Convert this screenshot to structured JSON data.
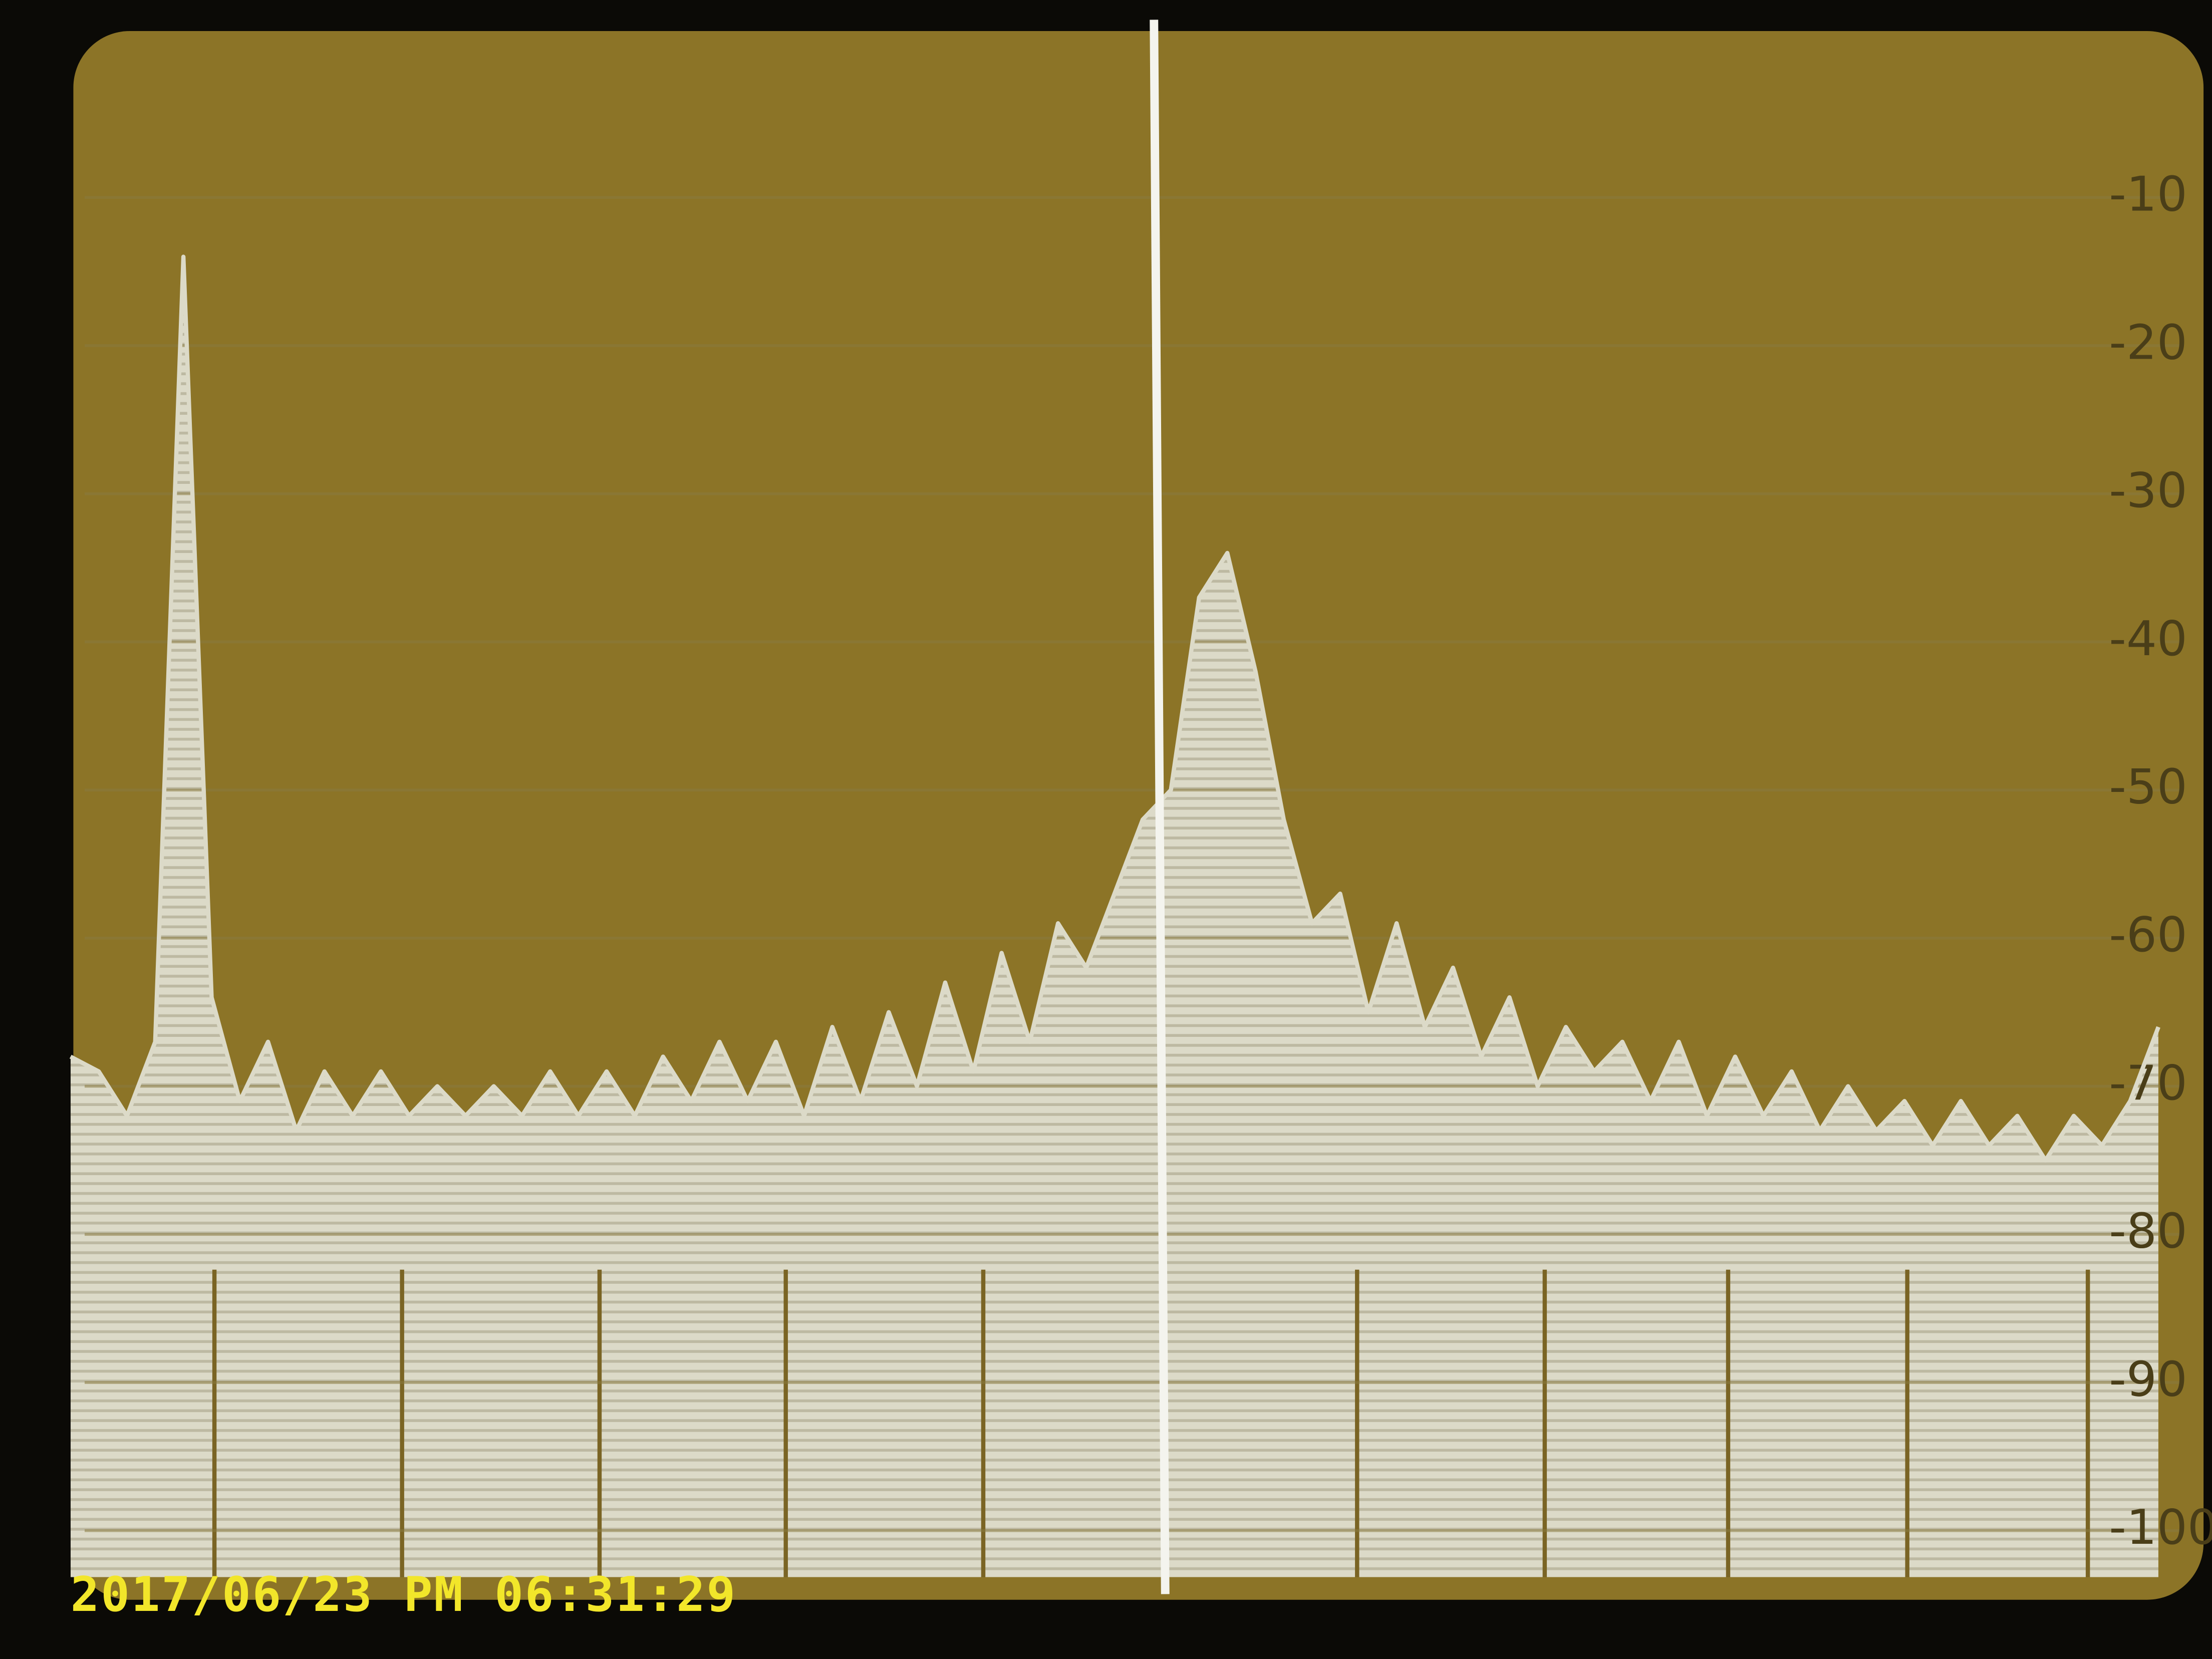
{
  "screen": {
    "timestamp": "2017/06/23 PM 06:31:29"
  },
  "chart_data": {
    "type": "area",
    "values": [
      -68,
      -69,
      -72,
      -67,
      -14,
      -64,
      -71,
      -67,
      -73,
      -69,
      -72,
      -69,
      -72,
      -70,
      -72,
      -70,
      -72,
      -69,
      -72,
      -69,
      -72,
      -68,
      -71,
      -67,
      -71,
      -67,
      -72,
      -66,
      -71,
      -65,
      -70,
      -63,
      -69,
      -61,
      -67,
      -59,
      -62,
      -57,
      -52,
      -50,
      -37,
      -34,
      -42,
      -52,
      -59,
      -57,
      -65,
      -59,
      -66,
      -62,
      -68,
      -64,
      -70,
      -66,
      -69,
      -67,
      -71,
      -67,
      -72,
      -68,
      -72,
      -69,
      -73,
      -70,
      -73,
      -71,
      -74,
      -71,
      -74,
      -72,
      -75,
      -72,
      -74,
      -71,
      -66
    ],
    "color": "#dcdac8",
    "ylim": [
      -100,
      0
    ],
    "yticks": [
      -10,
      -20,
      -30,
      -40,
      -50,
      -60,
      -70,
      -80,
      -90,
      -100
    ],
    "grid": true
  }
}
